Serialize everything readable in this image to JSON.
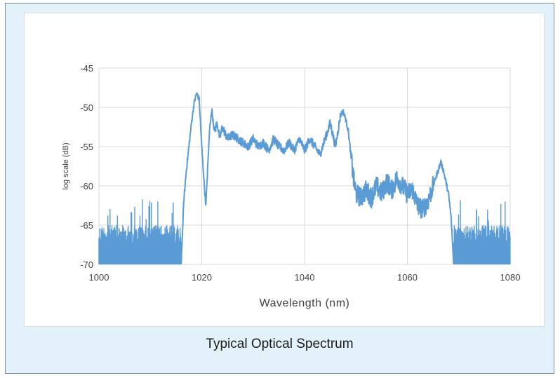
{
  "caption": "Typical Optical Spectrum",
  "colors": {
    "series": "#5b9bd5",
    "grid": "#d9d9d9",
    "background": "#e3f1fa"
  },
  "chart_data": {
    "type": "line",
    "xlabel": "Wavelength (nm)",
    "ylabel": "log scale (dB)",
    "xlim": [
      1000,
      1080
    ],
    "ylim": [
      -70,
      -45
    ],
    "xticks": [
      1000,
      1020,
      1040,
      1060,
      1080
    ],
    "yticks": [
      -45,
      -50,
      -55,
      -60,
      -65,
      -70
    ],
    "grid": true,
    "legend": "none",
    "series": [
      {
        "noise_floor_regions": [
          [
            1000,
            1016
          ],
          [
            1069,
            1080
          ]
        ],
        "floor_envelope_top_db": -65,
        "x": [
          1000,
          1016,
          1016.5,
          1017,
          1017.5,
          1018,
          1018.5,
          1019,
          1019.5,
          1020,
          1020.5,
          1020.8,
          1021.2,
          1021.6,
          1022,
          1022.5,
          1023,
          1023.5,
          1024,
          1025,
          1026,
          1027,
          1028,
          1029,
          1030,
          1031,
          1032,
          1033,
          1034,
          1035,
          1036,
          1037,
          1038,
          1039,
          1040,
          1041,
          1042,
          1043,
          1044,
          1045,
          1046,
          1047,
          1047.5,
          1048,
          1048.5,
          1049,
          1049.5,
          1050,
          1051,
          1052,
          1053,
          1054,
          1055,
          1056,
          1057,
          1058,
          1059,
          1060,
          1061,
          1062,
          1063,
          1064,
          1065,
          1066,
          1066.5,
          1067,
          1068,
          1068.5,
          1069,
          1080
        ],
        "y": [
          -70,
          -70,
          -62,
          -58,
          -55,
          -52,
          -49.5,
          -48.2,
          -49,
          -55,
          -60,
          -62.5,
          -57,
          -52,
          -50.5,
          -53,
          -52,
          -54,
          -52.5,
          -54,
          -53.5,
          -54,
          -54.5,
          -55,
          -54,
          -55,
          -54.5,
          -55.5,
          -54,
          -55,
          -55.5,
          -54.5,
          -55.5,
          -54,
          -55.5,
          -54,
          -55,
          -56,
          -54,
          -52,
          -55,
          -51,
          -50.5,
          -51.5,
          -53,
          -56,
          -59,
          -61,
          -61.5,
          -60.5,
          -61.5,
          -60,
          -61,
          -59.5,
          -60.5,
          -59,
          -60,
          -61,
          -60.5,
          -62.5,
          -63,
          -62,
          -60,
          -58,
          -57,
          -58,
          -61,
          -64,
          -70,
          -70
        ]
      }
    ]
  }
}
